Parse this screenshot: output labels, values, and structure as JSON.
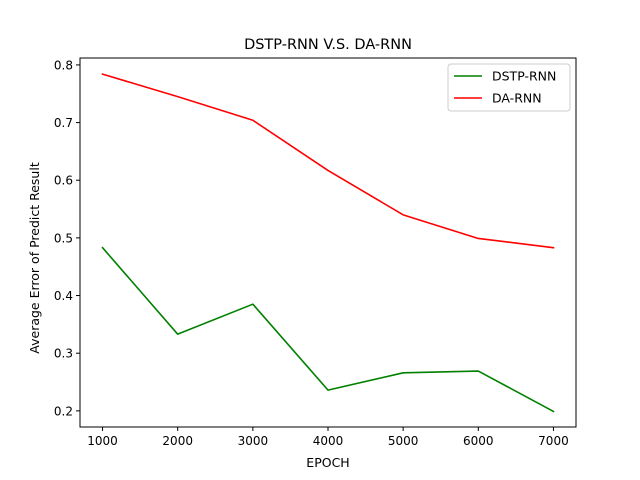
{
  "chart_data": {
    "type": "line",
    "title": "DSTP-RNN V.S. DA-RNN",
    "xlabel": "EPOCH",
    "ylabel": "Average Error of Predict Result",
    "x": [
      1000,
      2000,
      3000,
      4000,
      5000,
      6000,
      7000
    ],
    "xticks": [
      1000,
      2000,
      3000,
      4000,
      5000,
      6000,
      7000
    ],
    "yticks": [
      0.2,
      0.3,
      0.4,
      0.5,
      0.6,
      0.7,
      0.8
    ],
    "xlim": [
      700,
      7300
    ],
    "ylim": [
      0.172,
      0.812
    ],
    "grid": false,
    "legend_position": "top-right",
    "series": [
      {
        "name": "DSTP-RNN",
        "color": "#008000",
        "values": [
          0.483,
          0.333,
          0.385,
          0.236,
          0.266,
          0.269,
          0.199
        ]
      },
      {
        "name": "DA-RNN",
        "color": "#ff0000",
        "values": [
          0.784,
          0.745,
          0.704,
          0.617,
          0.54,
          0.499,
          0.483
        ]
      }
    ]
  }
}
